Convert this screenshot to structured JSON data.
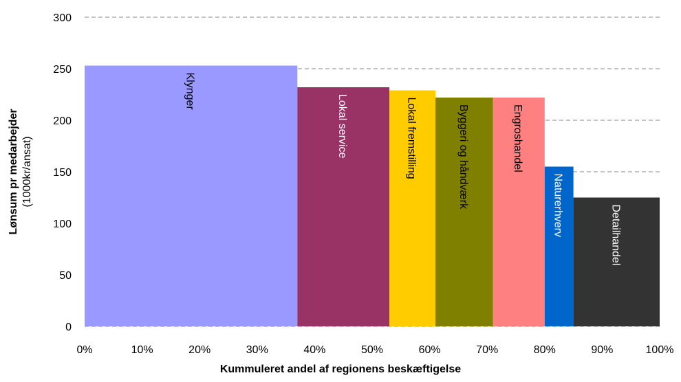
{
  "chart_data": {
    "type": "bar",
    "xlabel": "Kummuleret andel af regionens beskæftigelse",
    "ylabel": "Lønsum pr medarbejder",
    "ylabel_unit": "(1000kr/ansat)",
    "categories": [
      "Klynger",
      "Lokal service",
      "Lokal fremstilling",
      "Byggeri og håndværk",
      "Engroshandel",
      "Naturerhverv",
      "Detailhandel"
    ],
    "bins": [
      0,
      37,
      53,
      61,
      71,
      80,
      85,
      100
    ],
    "values": [
      253,
      232,
      229,
      222,
      222,
      155,
      125
    ],
    "colors": [
      "#9999ff",
      "#993366",
      "#ffcc00",
      "#808000",
      "#ff8080",
      "#0066cc",
      "#333333"
    ],
    "label_colors": [
      "#000000",
      "#ffffff",
      "#000000",
      "#000000",
      "#000000",
      "#ffffff",
      "#ffffff"
    ],
    "xlim": [
      0,
      100
    ],
    "xticks": [
      {
        "value": 0,
        "label": "0%"
      },
      {
        "value": 10,
        "label": "10%"
      },
      {
        "value": 20,
        "label": "20%"
      },
      {
        "value": 30,
        "label": "30%"
      },
      {
        "value": 40,
        "label": "40%"
      },
      {
        "value": 50,
        "label": "50%"
      },
      {
        "value": 60,
        "label": "60%"
      },
      {
        "value": 70,
        "label": "70%"
      },
      {
        "value": 80,
        "label": "80%"
      },
      {
        "value": 90,
        "label": "90%"
      },
      {
        "value": 100,
        "label": "100%"
      }
    ],
    "ylim": [
      0,
      300
    ],
    "yticks": [
      0,
      50,
      100,
      150,
      200,
      250,
      300
    ],
    "grid": true
  }
}
